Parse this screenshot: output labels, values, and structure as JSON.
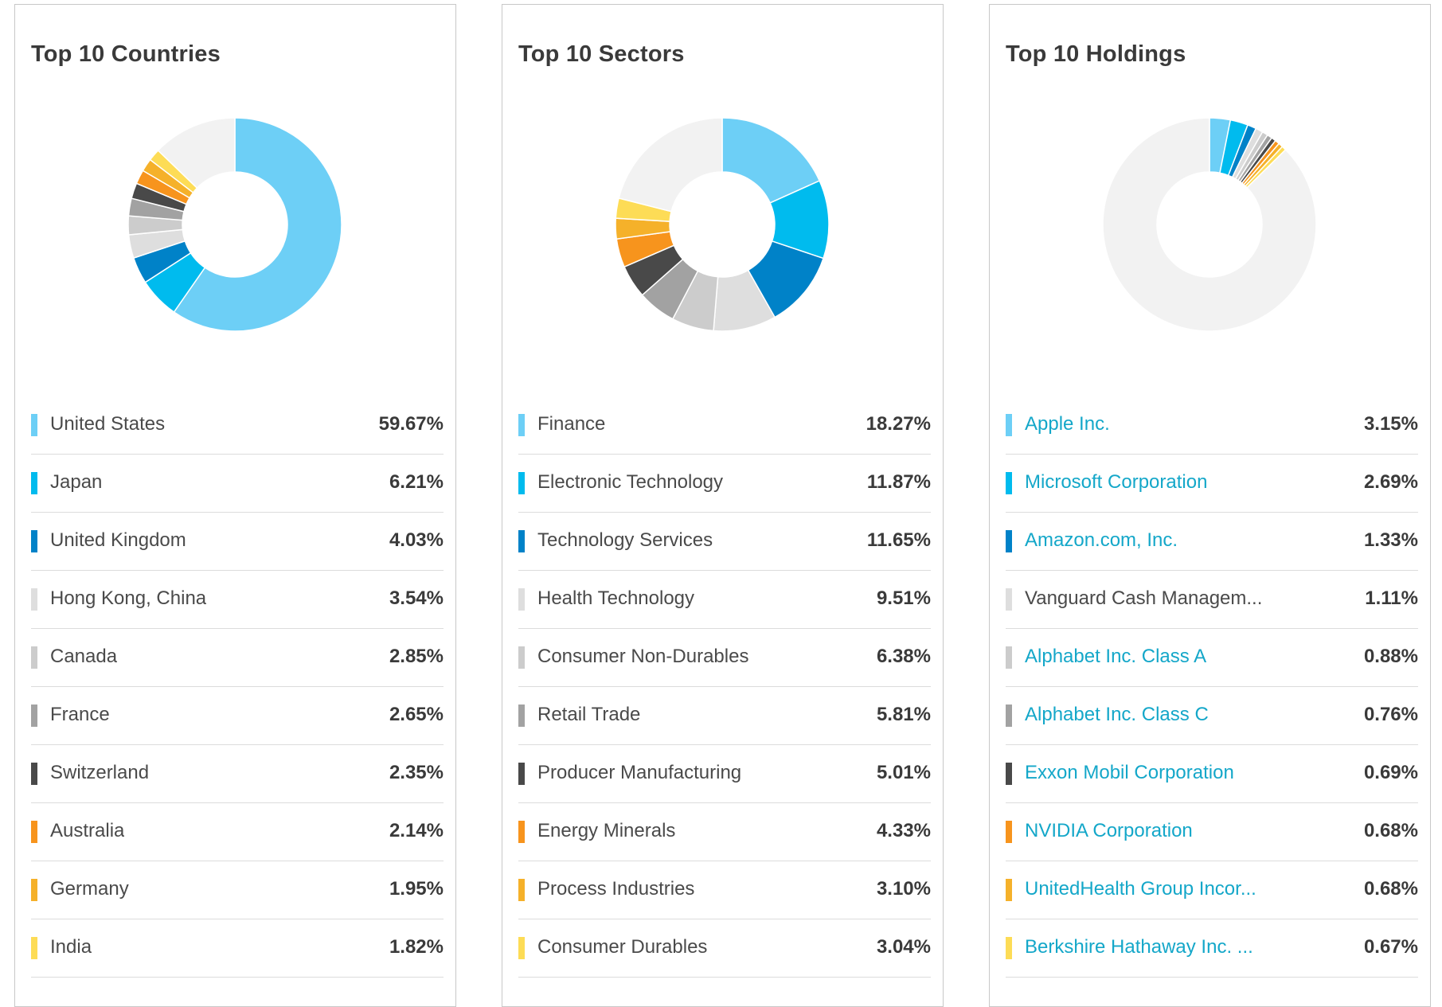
{
  "colors": [
    "#6dcff6",
    "#00bbee",
    "#0082c8",
    "#dedede",
    "#cccccc",
    "#a2a2a2",
    "#494949",
    "#f7941d",
    "#f5b12a",
    "#fddc56"
  ],
  "remainder_color": "#f2f2f2",
  "chart_data": [
    {
      "type": "pie",
      "title": "Top 10 Countries",
      "categories": [
        "United States",
        "Japan",
        "United Kingdom",
        "Hong Kong, China",
        "Canada",
        "France",
        "Switzerland",
        "Australia",
        "Germany",
        "India"
      ],
      "labels": [
        "59.67%",
        "6.21%",
        "4.03%",
        "3.54%",
        "2.85%",
        "2.65%",
        "2.35%",
        "2.14%",
        "1.95%",
        "1.82%"
      ],
      "values": [
        59.67,
        6.21,
        4.03,
        3.54,
        2.85,
        2.65,
        2.35,
        2.14,
        1.95,
        1.82
      ],
      "links": false
    },
    {
      "type": "pie",
      "title": "Top 10 Sectors",
      "categories": [
        "Finance",
        "Electronic Technology",
        "Technology Services",
        "Health Technology",
        "Consumer Non-Durables",
        "Retail Trade",
        "Producer Manufacturing",
        "Energy Minerals",
        "Process Industries",
        "Consumer Durables"
      ],
      "labels": [
        "18.27%",
        "11.87%",
        "11.65%",
        "9.51%",
        "6.38%",
        "5.81%",
        "5.01%",
        "4.33%",
        "3.10%",
        "3.04%"
      ],
      "values": [
        18.27,
        11.87,
        11.65,
        9.51,
        6.38,
        5.81,
        5.01,
        4.33,
        3.1,
        3.04
      ],
      "links": false
    },
    {
      "type": "pie",
      "title": "Top 10 Holdings",
      "categories": [
        "Apple Inc.",
        "Microsoft Corporation",
        "Amazon.com, Inc.",
        "Vanguard Cash Managem...",
        "Alphabet Inc. Class A",
        "Alphabet Inc. Class C",
        "Exxon Mobil Corporation",
        "NVIDIA Corporation",
        "UnitedHealth Group Incor...",
        "Berkshire Hathaway Inc. ..."
      ],
      "labels": [
        "3.15%",
        "2.69%",
        "1.33%",
        "1.11%",
        "0.88%",
        "0.76%",
        "0.69%",
        "0.68%",
        "0.68%",
        "0.67%"
      ],
      "values": [
        3.15,
        2.69,
        1.33,
        1.11,
        0.88,
        0.76,
        0.69,
        0.68,
        0.68,
        0.67
      ],
      "link_flags": [
        true,
        true,
        true,
        false,
        true,
        true,
        true,
        true,
        true,
        true
      ]
    }
  ]
}
